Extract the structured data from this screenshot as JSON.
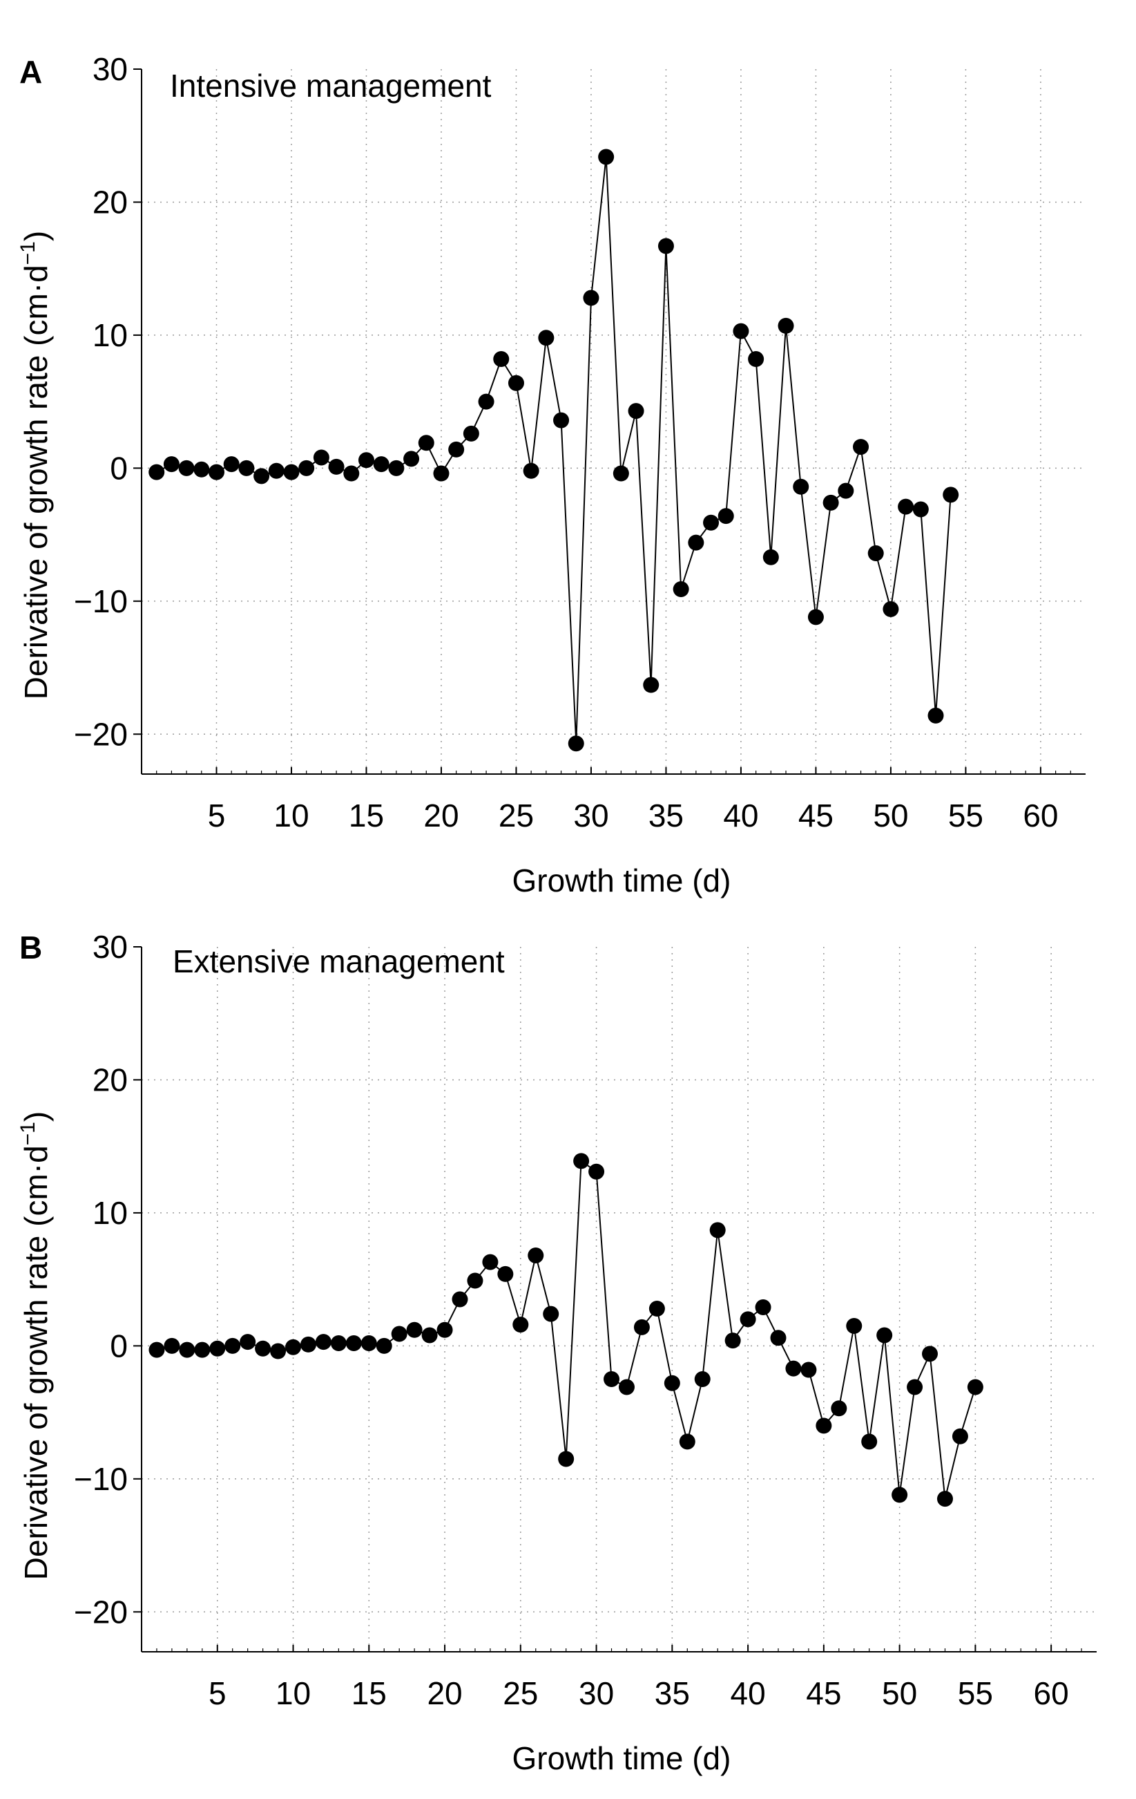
{
  "chart_data": [
    {
      "type": "line",
      "panel_label": "A",
      "annotation": "Intensive management",
      "xlabel": "Growth time (d)",
      "ylabel_main": "Derivative of growth rate (cm·d",
      "ylabel_sup": "−1",
      "ylabel_close": ")",
      "xlim": [
        0,
        63
      ],
      "ylim": [
        -23,
        30
      ],
      "x_ticks": [
        5,
        10,
        15,
        20,
        25,
        30,
        35,
        40,
        45,
        50,
        55,
        60
      ],
      "x_tick_labels": [
        "5",
        "10",
        "15",
        "20",
        "25",
        "30",
        "35",
        "40",
        "45",
        "50",
        "55",
        "60"
      ],
      "y_ticks": [
        -20,
        -10,
        0,
        10,
        20,
        30
      ],
      "y_tick_labels": [
        "−20",
        "−10",
        "0",
        "10",
        "20",
        "30"
      ],
      "grid": true,
      "series": [
        {
          "x": [
            1,
            2,
            3,
            4,
            5,
            6,
            7,
            8,
            9,
            10,
            11,
            12,
            13,
            14,
            15,
            16,
            17,
            18,
            19,
            20,
            21,
            22,
            23,
            24,
            25,
            26,
            27,
            28,
            29,
            30,
            31,
            32,
            33,
            34,
            35,
            36,
            37,
            38,
            39,
            40,
            41,
            42,
            43,
            44,
            45,
            46,
            47,
            48,
            49,
            50,
            51,
            52,
            53,
            54
          ],
          "y": [
            -0.3,
            0.3,
            0,
            -0.1,
            -0.3,
            0.3,
            0,
            -0.6,
            -0.2,
            -0.3,
            0,
            0.8,
            0.1,
            -0.4,
            0.6,
            0.3,
            0,
            0.7,
            1.9,
            -0.4,
            1.4,
            2.6,
            5,
            8.2,
            6.4,
            -0.2,
            9.8,
            3.6,
            -20.7,
            12.8,
            23.4,
            -0.4,
            4.3,
            -16.3,
            16.7,
            -9.1,
            -5.6,
            -4.1,
            -3.6,
            10.3,
            8.2,
            -6.7,
            10.7,
            -1.4,
            -11.2,
            -2.6,
            -1.7,
            1.6,
            -6.4,
            -10.6,
            -2.9,
            -3.1,
            -18.6,
            -2
          ]
        }
      ]
    },
    {
      "type": "line",
      "panel_label": "B",
      "annotation": "Extensive management",
      "xlabel": "Growth time (d)",
      "ylabel_main": "Derivative of growth rate (cm·d",
      "ylabel_sup": "−1",
      "ylabel_close": ")",
      "xlim": [
        0,
        63
      ],
      "ylim": [
        -23,
        30
      ],
      "x_ticks": [
        5,
        10,
        15,
        20,
        25,
        30,
        35,
        40,
        45,
        50,
        55,
        60
      ],
      "x_tick_labels": [
        "5",
        "10",
        "15",
        "20",
        "25",
        "30",
        "35",
        "40",
        "45",
        "50",
        "55",
        "60"
      ],
      "y_ticks": [
        -20,
        -10,
        0,
        10,
        20,
        30
      ],
      "y_tick_labels": [
        "−20",
        "−10",
        "0",
        "10",
        "20",
        "30"
      ],
      "grid": true,
      "series": [
        {
          "x": [
            1,
            2,
            3,
            4,
            5,
            6,
            7,
            8,
            9,
            10,
            11,
            12,
            13,
            14,
            15,
            16,
            17,
            18,
            19,
            20,
            21,
            22,
            23,
            24,
            25,
            26,
            27,
            28,
            29,
            30,
            31,
            32,
            33,
            34,
            35,
            36,
            37,
            38,
            39,
            40,
            41,
            42,
            43,
            44,
            45,
            46,
            47,
            48,
            49,
            50,
            51,
            52,
            53,
            54,
            55
          ],
          "y": [
            -0.3,
            0,
            -0.3,
            -0.3,
            -0.2,
            0,
            0.3,
            -0.2,
            -0.4,
            -0.1,
            0.1,
            0.3,
            0.2,
            0.2,
            0.2,
            0,
            0.9,
            1.2,
            0.8,
            1.2,
            3.5,
            4.9,
            6.3,
            5.4,
            1.6,
            6.8,
            2.4,
            -8.5,
            13.9,
            13.1,
            -2.5,
            -3.1,
            1.4,
            2.8,
            -2.8,
            -7.2,
            -2.5,
            8.7,
            0.4,
            2,
            2.9,
            0.6,
            -1.7,
            -1.8,
            -6,
            -4.7,
            1.5,
            -7.2,
            0.8,
            -11.2,
            -3.1,
            -0.6,
            -11.5,
            -6.8,
            -3.1
          ]
        }
      ]
    }
  ]
}
